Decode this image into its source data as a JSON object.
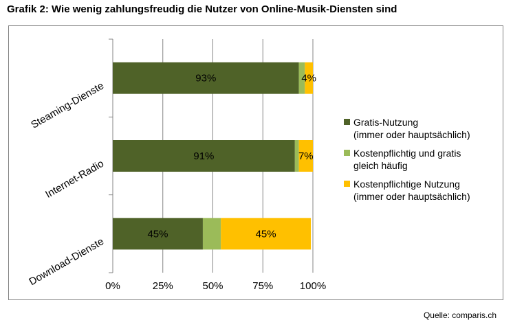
{
  "title": "Grafik 2: Wie wenig zahlungsfreudig die Nutzer von Online-Musik-Diensten sind",
  "source": "Quelle: comparis.ch",
  "chart_data": {
    "type": "bar",
    "orientation": "horizontal",
    "stacked": true,
    "title": "Grafik 2: Wie wenig zahlungsfreudig die Nutzer von Online-Musik-Diensten sind",
    "xlabel": "",
    "ylabel": "",
    "xlim": [
      0,
      100
    ],
    "x_ticks": [
      "0%",
      "25%",
      "50%",
      "75%",
      "100%"
    ],
    "grid": "vertical",
    "legend_position": "right",
    "categories": [
      "Steaming-Dienste",
      "Internet-Radio",
      "Download-Dienste"
    ],
    "series": [
      {
        "name": "Gratis-Nutzung\n(immer oder hauptsächlich)",
        "color": "#4f6228",
        "values": [
          93,
          91,
          45
        ],
        "labels": [
          "93%",
          "91%",
          "45%"
        ]
      },
      {
        "name": "Kostenpflichtig und gratis\ngleich häufig",
        "color": "#9bbb59",
        "values": [
          3,
          2,
          9
        ],
        "labels": [
          "",
          "",
          ""
        ]
      },
      {
        "name": "Kostenpflichtige Nutzung\n(immer oder hauptsächlich)",
        "color": "#ffc000",
        "values": [
          4,
          7,
          45
        ],
        "labels": [
          "4%",
          "7%",
          "45%"
        ]
      }
    ]
  }
}
